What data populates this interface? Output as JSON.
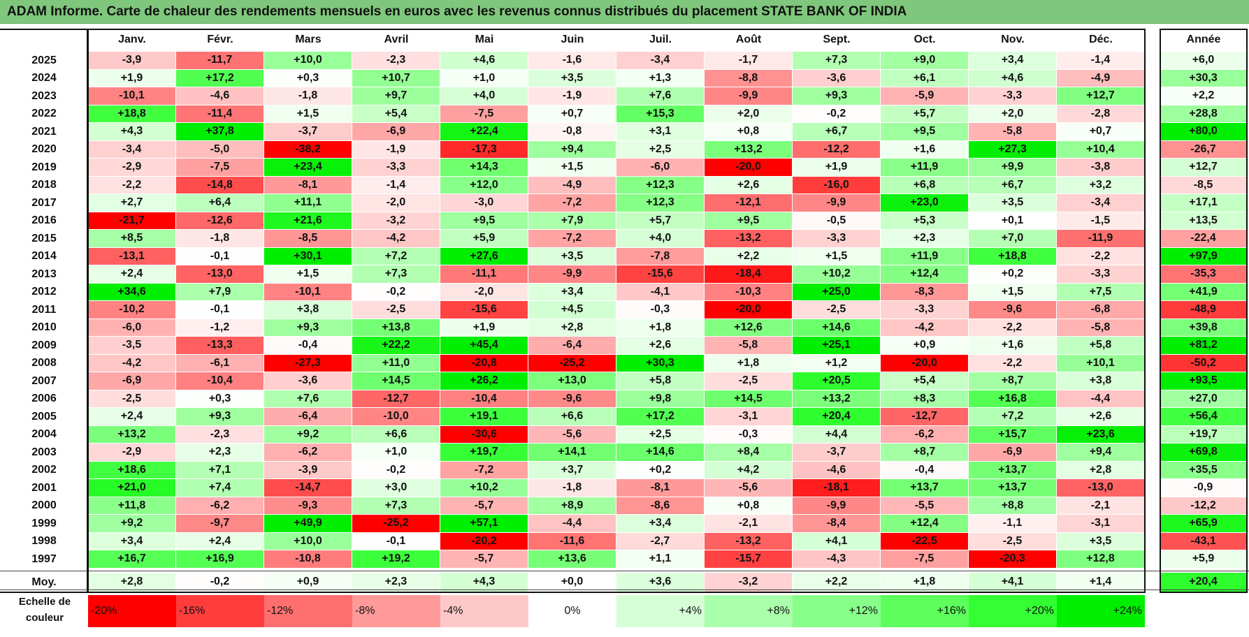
{
  "title": "ADAM Informe. Carte de chaleur des rendements mensuels en euros avec les revenus connus distribués du placement STATE BANK OF INDIA",
  "chart_data": {
    "type": "heatmap",
    "title": "ADAM Informe. Carte de chaleur des rendements mensuels en euros avec les revenus connus distribués du placement STATE BANK OF INDIA",
    "columns": [
      "Janv.",
      "Févr.",
      "Mars",
      "Avril",
      "Mai",
      "Juin",
      "Juil.",
      "Août",
      "Sept.",
      "Oct.",
      "Nov.",
      "Déc."
    ],
    "year_column": "Année",
    "rows": [
      {
        "year": "2025",
        "values": [
          "-3,9",
          "-11,7",
          "+10,0",
          "-2,3",
          "+4,6",
          "-1,6",
          "-3,4",
          "-1,7",
          "+7,3",
          "+9,0",
          "+3,4",
          "-1,4"
        ],
        "annual": "+6,0"
      },
      {
        "year": "2024",
        "values": [
          "+1,9",
          "+17,2",
          "+0,3",
          "+10,7",
          "+1,0",
          "+3,5",
          "+1,3",
          "-8,8",
          "-3,6",
          "+6,1",
          "+4,6",
          "-4,9"
        ],
        "annual": "+30,3"
      },
      {
        "year": "2023",
        "values": [
          "-10,1",
          "-4,6",
          "-1,8",
          "+9,7",
          "+4,0",
          "-1,9",
          "+7,6",
          "-9,9",
          "+9,3",
          "-5,9",
          "-3,3",
          "+12,7"
        ],
        "annual": "+2,2"
      },
      {
        "year": "2022",
        "values": [
          "+18,8",
          "-11,4",
          "+1,5",
          "+5,4",
          "-7,5",
          "+0,7",
          "+15,3",
          "+2,0",
          "-0,2",
          "+5,7",
          "+2,0",
          "-2,8"
        ],
        "annual": "+28,8"
      },
      {
        "year": "2021",
        "values": [
          "+4,3",
          "+37,8",
          "-3,7",
          "-6,9",
          "+22,4",
          "-0,8",
          "+3,1",
          "+0,8",
          "+6,7",
          "+9,5",
          "-5,8",
          "+0,7"
        ],
        "annual": "+80,0"
      },
      {
        "year": "2020",
        "values": [
          "-3,4",
          "-5,0",
          "-38,2",
          "-1,9",
          "-17,3",
          "+9,4",
          "+2,5",
          "+13,2",
          "-12,2",
          "+1,6",
          "+27,3",
          "+10,4"
        ],
        "annual": "-26,7"
      },
      {
        "year": "2019",
        "values": [
          "-2,9",
          "-7,5",
          "+23,4",
          "-3,3",
          "+14,3",
          "+1,5",
          "-6,0",
          "-20,0",
          "+1,9",
          "+11,9",
          "+9,9",
          "-3,8"
        ],
        "annual": "+12,7"
      },
      {
        "year": "2018",
        "values": [
          "-2,2",
          "-14,8",
          "-8,1",
          "-1,4",
          "+12,0",
          "-4,9",
          "+12,3",
          "+2,6",
          "-16,0",
          "+6,8",
          "+6,7",
          "+3,2"
        ],
        "annual": "-8,5"
      },
      {
        "year": "2017",
        "values": [
          "+2,7",
          "+6,4",
          "+11,1",
          "-2,0",
          "-3,0",
          "-7,2",
          "+12,3",
          "-12,1",
          "-9,9",
          "+23,0",
          "+3,5",
          "-3,4"
        ],
        "annual": "+17,1"
      },
      {
        "year": "2016",
        "values": [
          "-21,7",
          "-12,6",
          "+21,6",
          "-3,2",
          "+9,5",
          "+7,9",
          "+5,7",
          "+9,5",
          "-0,5",
          "+5,3",
          "+0,1",
          "-1,5"
        ],
        "annual": "+13,5"
      },
      {
        "year": "2015",
        "values": [
          "+8,5",
          "-1,8",
          "-8,5",
          "-4,2",
          "+5,9",
          "-7,2",
          "+4,0",
          "-13,2",
          "-3,3",
          "+2,3",
          "+7,0",
          "-11,9"
        ],
        "annual": "-22,4"
      },
      {
        "year": "2014",
        "values": [
          "-13,1",
          "-0,1",
          "+30,1",
          "+7,2",
          "+27,6",
          "+3,5",
          "-7,8",
          "+2,2",
          "+1,5",
          "+11,9",
          "+18,8",
          "-2,2"
        ],
        "annual": "+97,9"
      },
      {
        "year": "2013",
        "values": [
          "+2,4",
          "-13,0",
          "+1,5",
          "+7,3",
          "-11,1",
          "-9,9",
          "-15,6",
          "-18,4",
          "+10,2",
          "+12,4",
          "+0,2",
          "-3,3"
        ],
        "annual": "-35,3"
      },
      {
        "year": "2012",
        "values": [
          "+34,6",
          "+7,9",
          "-10,1",
          "-0,2",
          "-2,0",
          "+3,4",
          "-4,1",
          "-10,3",
          "+25,0",
          "-8,3",
          "+1,5",
          "+7,5"
        ],
        "annual": "+41,9"
      },
      {
        "year": "2011",
        "values": [
          "-10,2",
          "-0,1",
          "+3,8",
          "-2,5",
          "-15,6",
          "+4,5",
          "-0,3",
          "-20,0",
          "-2,5",
          "-3,3",
          "-9,6",
          "-6,8"
        ],
        "annual": "-48,9"
      },
      {
        "year": "2010",
        "values": [
          "-6,0",
          "-1,2",
          "+9,3",
          "+13,8",
          "+1,9",
          "+2,8",
          "+1,8",
          "+12,6",
          "+14,6",
          "-4,2",
          "-2,2",
          "-5,8"
        ],
        "annual": "+39,8"
      },
      {
        "year": "2009",
        "values": [
          "-3,5",
          "-13,3",
          "-0,4",
          "+22,2",
          "+45,4",
          "-6,4",
          "+2,6",
          "-5,8",
          "+25,1",
          "+0,9",
          "+1,6",
          "+5,8"
        ],
        "annual": "+81,2"
      },
      {
        "year": "2008",
        "values": [
          "-4,2",
          "-6,1",
          "-27,3",
          "+11,0",
          "-20,8",
          "-25,2",
          "+30,3",
          "+1,8",
          "+1,2",
          "-20,0",
          "-2,2",
          "+10,1"
        ],
        "annual": "-50,2"
      },
      {
        "year": "2007",
        "values": [
          "-6,9",
          "-10,4",
          "-3,6",
          "+14,5",
          "+26,2",
          "+13,0",
          "+5,8",
          "-2,5",
          "+20,5",
          "+5,4",
          "+8,7",
          "+3,8"
        ],
        "annual": "+93,5"
      },
      {
        "year": "2006",
        "values": [
          "-2,5",
          "+0,3",
          "+7,6",
          "-12,7",
          "-10,4",
          "-9,6",
          "+9,8",
          "+14,5",
          "+13,2",
          "+8,3",
          "+16,8",
          "-4,4"
        ],
        "annual": "+27,0"
      },
      {
        "year": "2005",
        "values": [
          "+2,4",
          "+9,3",
          "-6,4",
          "-10,0",
          "+19,1",
          "+6,6",
          "+17,2",
          "-3,1",
          "+20,4",
          "-12,7",
          "+7,2",
          "+2,6"
        ],
        "annual": "+56,4"
      },
      {
        "year": "2004",
        "values": [
          "+13,2",
          "-2,3",
          "+9,2",
          "+6,6",
          "-30,6",
          "-5,6",
          "+2,5",
          "-0,3",
          "+4,4",
          "-6,2",
          "+15,7",
          "+23,6"
        ],
        "annual": "+19,7"
      },
      {
        "year": "2003",
        "values": [
          "-2,9",
          "+2,3",
          "-6,2",
          "+1,0",
          "+19,7",
          "+14,1",
          "+14,6",
          "+8,4",
          "-3,7",
          "+8,7",
          "-6,9",
          "+9,4"
        ],
        "annual": "+69,8"
      },
      {
        "year": "2002",
        "values": [
          "+18,6",
          "+7,1",
          "-3,9",
          "-0,2",
          "-7,2",
          "+3,7",
          "+0,2",
          "+4,2",
          "-4,6",
          "-0,4",
          "+13,7",
          "+2,8"
        ],
        "annual": "+35,5"
      },
      {
        "year": "2001",
        "values": [
          "+21,0",
          "+7,4",
          "-14,7",
          "+3,0",
          "+10,2",
          "-1,8",
          "-8,1",
          "-5,6",
          "-18,1",
          "+13,7",
          "+13,7",
          "-13,0"
        ],
        "annual": "-0,9"
      },
      {
        "year": "2000",
        "values": [
          "+11,8",
          "-6,2",
          "-9,3",
          "+7,3",
          "-5,7",
          "+8,9",
          "-8,6",
          "+0,8",
          "-9,9",
          "-5,5",
          "+8,8",
          "-2,1"
        ],
        "annual": "-12,2"
      },
      {
        "year": "1999",
        "values": [
          "+9,2",
          "-9,7",
          "+49,9",
          "-25,2",
          "+57,1",
          "-4,4",
          "+3,4",
          "-2,1",
          "-8,4",
          "+12,4",
          "-1,1",
          "-3,1"
        ],
        "annual": "+65,9"
      },
      {
        "year": "1998",
        "values": [
          "+3,4",
          "+2,4",
          "+10,0",
          "-0,1",
          "-20,2",
          "-11,6",
          "-2,7",
          "-13,2",
          "+4,1",
          "-22,5",
          "-2,5",
          "+3,5"
        ],
        "annual": "-43,1"
      },
      {
        "year": "1997",
        "values": [
          "+16,7",
          "+16,9",
          "-10,8",
          "+19,2",
          "-5,7",
          "+13,6",
          "+1,1",
          "-15,7",
          "-4,3",
          "-7,5",
          "-20,3",
          "+12,8"
        ],
        "annual": "+5,9"
      }
    ],
    "average": {
      "label": "Moy.",
      "values": [
        "+2,8",
        "-0,2",
        "+0,9",
        "+2,3",
        "+4,3",
        "+0,0",
        "+3,6",
        "-3,2",
        "+2,2",
        "+1,8",
        "+4,1",
        "+1,4"
      ],
      "annual": "+20,4"
    },
    "color_scale": {
      "label_line1": "Echelle de",
      "label_line2": "couleur",
      "stops": [
        {
          "label": "-20%",
          "value": -20,
          "color": "#ff0000"
        },
        {
          "label": "-16%",
          "value": -16,
          "color": "#ff3d3d"
        },
        {
          "label": "-12%",
          "value": -12,
          "color": "#ff6f6f"
        },
        {
          "label": "-8%",
          "value": -8,
          "color": "#ff9a9a"
        },
        {
          "label": "-4%",
          "value": -4,
          "color": "#ffc8c8"
        },
        {
          "label": "0%",
          "value": 0,
          "color": "#ffffff"
        },
        {
          "label": "+4%",
          "value": 4,
          "color": "#d6ffd6"
        },
        {
          "label": "+8%",
          "value": 8,
          "color": "#aaffaa"
        },
        {
          "label": "+12%",
          "value": 12,
          "color": "#88ff88"
        },
        {
          "label": "+16%",
          "value": 16,
          "color": "#5cff5c"
        },
        {
          "label": "+20%",
          "value": 20,
          "color": "#33ff33"
        },
        {
          "label": "+24%",
          "value": 24,
          "color": "#00ee00"
        }
      ]
    }
  }
}
